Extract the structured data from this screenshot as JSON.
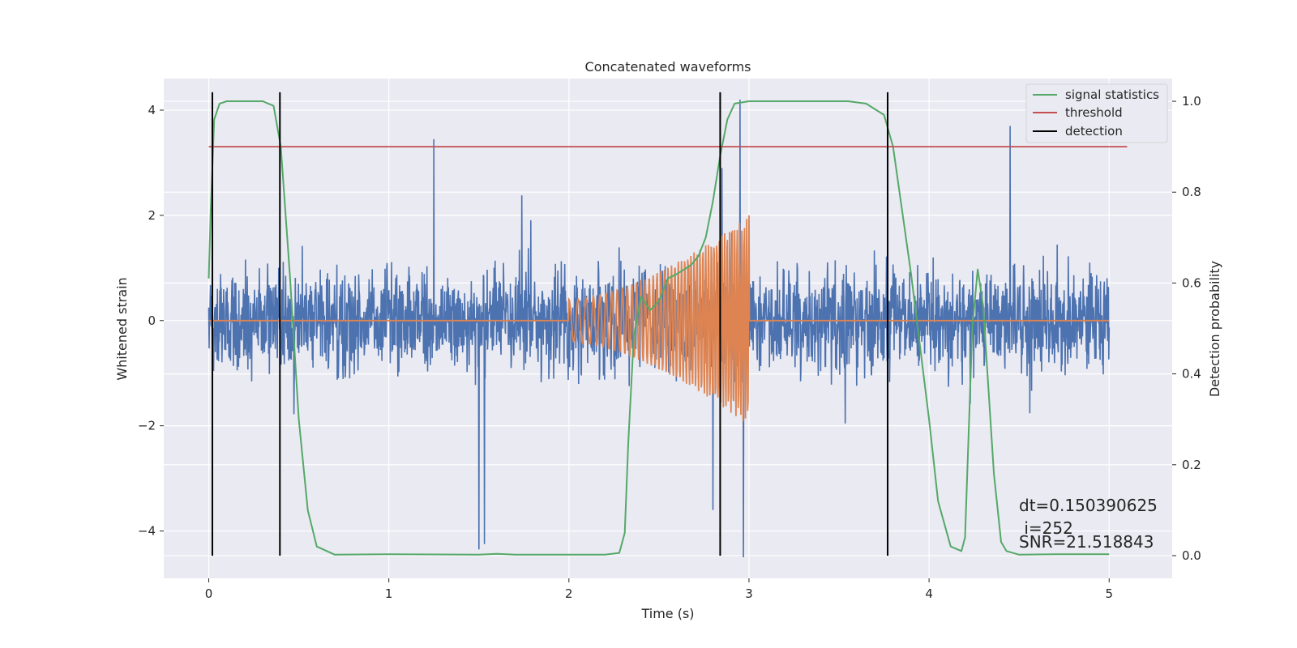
{
  "chart_data": {
    "type": "line",
    "title": "Concatenated waveforms",
    "xlabel": "Time (s)",
    "ylabel": "Whitened strain",
    "y2label": "Detection probability",
    "xlim": [
      -0.25,
      5.35
    ],
    "ylim": [
      -4.9,
      4.6
    ],
    "y2lim": [
      -0.05,
      1.05
    ],
    "xticks": [
      0,
      1,
      2,
      3,
      4,
      5
    ],
    "yticks": [
      -4,
      -2,
      0,
      2,
      4
    ],
    "y2ticks": [
      0.0,
      0.2,
      0.4,
      0.6,
      0.8,
      1.0
    ],
    "xtick_labels": [
      "0",
      "1",
      "2",
      "3",
      "4",
      "5"
    ],
    "ytick_labels": [
      "−4",
      "−2",
      "0",
      "2",
      "4"
    ],
    "y2tick_labels": [
      "0.0",
      "0.2",
      "0.4",
      "0.6",
      "0.8",
      "1.0"
    ],
    "grid": true,
    "legend_position": "top-right",
    "legend": [
      "signal statistics",
      "threshold",
      "detection"
    ],
    "colors": {
      "noise": "#4c72b0",
      "template": "#dd8452",
      "signal_statistics": "#55a868",
      "threshold": "#c44e52",
      "detection": "#000000",
      "background": "#eaeaf2",
      "grid": "#ffffff"
    },
    "noise_series": {
      "x_range": [
        0,
        5
      ],
      "envelope_typical": [
        -1.3,
        1.6
      ],
      "spikes": [
        {
          "x": 1.25,
          "y": 3.45
        },
        {
          "x": 1.5,
          "y": -4.35
        },
        {
          "x": 1.53,
          "y": -4.25
        },
        {
          "x": 2.95,
          "y": 4.2
        },
        {
          "x": 2.97,
          "y": -4.5
        },
        {
          "x": 2.85,
          "y": 2.9
        },
        {
          "x": 4.45,
          "y": 3.7
        },
        {
          "x": 2.8,
          "y": -3.6
        }
      ]
    },
    "template_series": {
      "x_range": [
        2.0,
        3.0
      ],
      "amplitude_start": 0.4,
      "amplitude_end": 2.0
    },
    "signal_statistics": {
      "axis": "right",
      "x": [
        0.0,
        0.01,
        0.03,
        0.06,
        0.1,
        0.2,
        0.3,
        0.36,
        0.4,
        0.45,
        0.5,
        0.55,
        0.6,
        0.7,
        1.0,
        1.5,
        1.6,
        1.7,
        2.0,
        2.2,
        2.28,
        2.31,
        2.33,
        2.36,
        2.4,
        2.45,
        2.5,
        2.55,
        2.6,
        2.68,
        2.72,
        2.76,
        2.8,
        2.84,
        2.88,
        2.92,
        3.0,
        3.3,
        3.55,
        3.65,
        3.75,
        3.8,
        3.9,
        4.0,
        4.05,
        4.12,
        4.18,
        4.2,
        4.24,
        4.27,
        4.3,
        4.36,
        4.4,
        4.43,
        4.5,
        4.7,
        5.0
      ],
      "y": [
        0.61,
        0.75,
        0.96,
        0.995,
        1.0,
        1.0,
        1.0,
        0.99,
        0.9,
        0.62,
        0.3,
        0.1,
        0.02,
        0.002,
        0.003,
        0.002,
        0.004,
        0.002,
        0.002,
        0.002,
        0.006,
        0.05,
        0.25,
        0.48,
        0.57,
        0.54,
        0.56,
        0.61,
        0.62,
        0.64,
        0.66,
        0.7,
        0.78,
        0.88,
        0.96,
        0.995,
        1.0,
        1.0,
        1.0,
        0.995,
        0.97,
        0.9,
        0.62,
        0.3,
        0.12,
        0.02,
        0.01,
        0.04,
        0.5,
        0.63,
        0.55,
        0.18,
        0.03,
        0.01,
        0.002,
        0.003,
        0.003
      ]
    },
    "threshold": {
      "axis": "right",
      "value": 0.9,
      "x_range": [
        0,
        5.1
      ]
    },
    "detections": [
      0.02,
      0.395,
      2.84,
      3.77
    ],
    "annotations": [
      "dt=0.150390625",
      " i=252",
      "SNR=21.518843"
    ]
  }
}
